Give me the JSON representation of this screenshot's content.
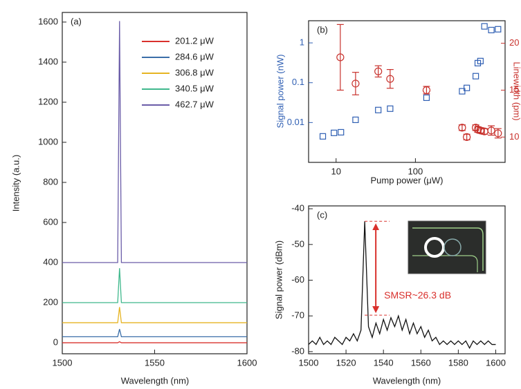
{
  "chart_data": [
    {
      "type": "line",
      "panel_label": "(a)",
      "xlabel": "Wavelength (nm)",
      "ylabel": "Intensity (a.u.)",
      "xlim": [
        1500,
        1600
      ],
      "xticks": [
        1500,
        1550,
        1600
      ],
      "ylim": [
        -55,
        1648
      ],
      "yticks": [
        0,
        200,
        400,
        600,
        800,
        1000,
        1200,
        1400,
        1600
      ],
      "legend": "upper right",
      "x": [
        1500,
        1530,
        1531,
        1532,
        1600
      ],
      "series": [
        {
          "name": "201.2 μW",
          "color": "#d9302c",
          "values": [
            0,
            0,
            5,
            0,
            0
          ]
        },
        {
          "name": "284.6 μW",
          "color": "#3a6ea8",
          "values": [
            30,
            30,
            68,
            30,
            30
          ]
        },
        {
          "name": "306.8 μW",
          "color": "#e6b422",
          "values": [
            100,
            100,
            178,
            100,
            100
          ]
        },
        {
          "name": "340.5 μW",
          "color": "#3fb88c",
          "values": [
            200,
            200,
            372,
            200,
            200
          ]
        },
        {
          "name": "462.7 μW",
          "color": "#6a5ca8",
          "values": [
            400,
            400,
            1605,
            400,
            400
          ]
        }
      ]
    },
    {
      "type": "scatter",
      "panel_label": "(b)",
      "xlabel": "Pump power (μW)",
      "ylabel": "Signal power (nW)",
      "y2label": "Linewidth (pm)",
      "xscale": "log",
      "yscale": "log",
      "xlim": [
        4.5,
        1350
      ],
      "xticks": [
        10,
        100
      ],
      "ylim": [
        0.001,
        3.6
      ],
      "yticks": [
        0.01,
        0.1,
        1
      ],
      "y2lim": [
        7.3,
        22.4
      ],
      "y2ticks": [
        10,
        15,
        20
      ],
      "series": [
        {
          "color": "#2f5fb3",
          "marker": "square",
          "x": [
            6.8,
            9.4,
            11.5,
            17.6,
            34,
            48,
            138,
            388,
            444,
            576,
            611,
            660,
            741,
            905,
            1100
          ],
          "values": [
            0.0045,
            0.0055,
            0.0057,
            0.0117,
            0.0206,
            0.0223,
            0.042,
            0.061,
            0.074,
            0.146,
            0.31,
            0.35,
            2.6,
            2.1,
            2.2
          ]
        },
        {
          "color": "#c8312c",
          "marker": "circle",
          "axis": "y2",
          "x": [
            11.3,
            17.6,
            34,
            48,
            138,
            388,
            444,
            576,
            611,
            660,
            741,
            905,
            1100
          ],
          "values": [
            18.5,
            15.7,
            17,
            16.2,
            15,
            11,
            10,
            11,
            10.8,
            10.7,
            10.6,
            10.7,
            10.4
          ],
          "errors": [
            3.5,
            1.2,
            0.6,
            1.0,
            0.4,
            0.3,
            0.3,
            0.3,
            0.3,
            0.3,
            0.3,
            0.5,
            0.5
          ]
        }
      ]
    },
    {
      "type": "line",
      "panel_label": "(c)",
      "xlabel": "Wavelength (nm)",
      "ylabel": "Signal power (dBm)",
      "xlim": [
        1500,
        1605
      ],
      "xticks": [
        1500,
        1520,
        1540,
        1560,
        1580,
        1600
      ],
      "ylim": [
        -80.6,
        -39.2
      ],
      "yticks": [
        -80,
        -70,
        -60,
        -50,
        -40
      ],
      "annotation": "SMSR~26.3 dB",
      "reference_lines": [
        -43.5,
        -69.8
      ],
      "x": [
        1500,
        1502,
        1504,
        1506,
        1508,
        1510,
        1512,
        1514,
        1516,
        1518,
        1520,
        1522,
        1524,
        1526,
        1528,
        1530,
        1532,
        1534,
        1536,
        1538,
        1540,
        1542,
        1544,
        1546,
        1548,
        1550,
        1552,
        1554,
        1556,
        1558,
        1560,
        1562,
        1564,
        1566,
        1568,
        1570,
        1572,
        1574,
        1576,
        1578,
        1580,
        1582,
        1584,
        1586,
        1588,
        1590,
        1592,
        1594,
        1596,
        1598,
        1600
      ],
      "series": [
        {
          "color": "#111111",
          "values": [
            -78,
            -77,
            -78,
            -76,
            -78,
            -77,
            -78,
            -76,
            -77,
            -78,
            -76,
            -77,
            -75,
            -77,
            -74,
            -43.5,
            -73,
            -76,
            -72,
            -75,
            -71,
            -74,
            -70.5,
            -73,
            -70,
            -74,
            -71,
            -75,
            -72,
            -75,
            -73,
            -76,
            -74,
            -77,
            -76,
            -78,
            -77,
            -78,
            -77,
            -78,
            -77,
            -78,
            -77,
            -79,
            -77,
            -78,
            -77,
            -78,
            -77,
            -78,
            -78
          ]
        }
      ]
    }
  ]
}
